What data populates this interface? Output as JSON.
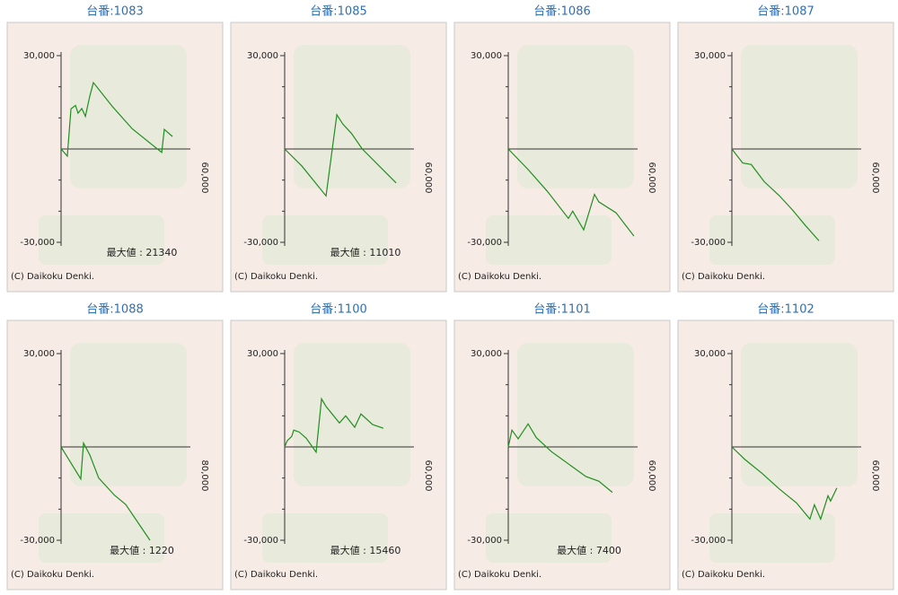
{
  "chart_data": [
    {
      "type": "line",
      "title": "台番:1083",
      "x": [
        0,
        2900,
        4600,
        6700,
        7900,
        9600,
        11300,
        13300,
        15000,
        24000,
        33000,
        46700,
        47900,
        51700
      ],
      "values": [
        0,
        -2300,
        12900,
        14000,
        11500,
        13000,
        10500,
        16900,
        21340,
        13500,
        6500,
        -1100,
        6300,
        4000
      ],
      "color": "#1f8f1f",
      "xlim": [
        0,
        60000
      ],
      "ylim": [
        -30000,
        30000
      ],
      "xticks": [
        {
          "value": 60000,
          "label": "60,000"
        }
      ],
      "yticks": [
        {
          "value": 30000,
          "label": "30,000"
        },
        {
          "value": -30000,
          "label": "-30,000"
        }
      ],
      "minor_yticks": [
        20000,
        10000,
        -10000,
        -20000
      ],
      "annotation": "最大値 : 21340",
      "copyright": "(C) Daikoku Denki."
    },
    {
      "type": "line",
      "title": "台番:1085",
      "x": [
        0,
        8000,
        19200,
        24200,
        27000,
        31000,
        36000,
        51700
      ],
      "values": [
        0,
        -5500,
        -15100,
        11010,
        8000,
        5000,
        0,
        -10900
      ],
      "color": "#1f8f1f",
      "xlim": [
        0,
        60000
      ],
      "ylim": [
        -30000,
        30000
      ],
      "xticks": [
        {
          "value": 60000,
          "label": "60,000"
        }
      ],
      "yticks": [
        {
          "value": 30000,
          "label": "30,000"
        },
        {
          "value": -30000,
          "label": "-30,000"
        }
      ],
      "minor_yticks": [
        20000,
        10000,
        -10000,
        -20000
      ],
      "annotation": "最大値 : 11010",
      "copyright": "(C) Daikoku Denki."
    },
    {
      "type": "line",
      "title": "台番:1086",
      "x": [
        0,
        9200,
        18000,
        27900,
        29900,
        35000,
        40000,
        42000,
        50000,
        58300
      ],
      "values": [
        0,
        -6600,
        -13500,
        -22300,
        -20000,
        -26000,
        -14600,
        -17000,
        -20500,
        -28000
      ],
      "color": "#1f8f1f",
      "xlim": [
        0,
        60000
      ],
      "ylim": [
        -30000,
        30000
      ],
      "xticks": [
        {
          "value": 60000,
          "label": "60,000"
        }
      ],
      "yticks": [
        {
          "value": 30000,
          "label": "30,000"
        },
        {
          "value": -30000,
          "label": "-30,000"
        }
      ],
      "minor_yticks": [
        20000,
        10000,
        -10000,
        -20000
      ],
      "copyright": "(C) Daikoku Denki."
    },
    {
      "type": "line",
      "title": "台番:1087",
      "x": [
        0,
        5000,
        9000,
        15000,
        22000,
        28000,
        34000,
        40400
      ],
      "values": [
        0,
        -4500,
        -5000,
        -10500,
        -15000,
        -19500,
        -24500,
        -29500
      ],
      "color": "#1f8f1f",
      "xlim": [
        0,
        60000
      ],
      "ylim": [
        -30000,
        30000
      ],
      "xticks": [
        {
          "value": 60000,
          "label": "60,000"
        }
      ],
      "yticks": [
        {
          "value": 30000,
          "label": "30,000"
        },
        {
          "value": -30000,
          "label": "-30,000"
        }
      ],
      "minor_yticks": [
        20000,
        10000,
        -10000,
        -20000
      ],
      "copyright": "(C) Daikoku Denki."
    },
    {
      "type": "line",
      "title": "台番:1088",
      "x": [
        0,
        12200,
        13900,
        17800,
        23300,
        33000,
        40000,
        55000
      ],
      "values": [
        0,
        -10300,
        1220,
        -2600,
        -10000,
        -15500,
        -18500,
        -30000
      ],
      "color": "#1f8f1f",
      "xlim": [
        0,
        80000
      ],
      "ylim": [
        -30000,
        30000
      ],
      "xticks": [
        {
          "value": 80000,
          "label": "80,000"
        }
      ],
      "yticks": [
        {
          "value": 30000,
          "label": "30,000"
        },
        {
          "value": -30000,
          "label": "-30,000"
        }
      ],
      "minor_yticks": [
        20000,
        10000,
        -10000,
        -20000
      ],
      "annotation": "最大値 : 1220",
      "copyright": "(C) Daikoku Denki."
    },
    {
      "type": "line",
      "title": "台番:1100",
      "x": [
        0,
        1200,
        3300,
        4200,
        6700,
        10000,
        14600,
        17100,
        19200,
        25400,
        28300,
        32500,
        35400,
        40800,
        45800
      ],
      "values": [
        0,
        2000,
        3400,
        5400,
        4800,
        2800,
        -1700,
        15460,
        13000,
        7700,
        10000,
        6300,
        10600,
        7200,
        6000
      ],
      "color": "#1f8f1f",
      "xlim": [
        0,
        60000
      ],
      "ylim": [
        -30000,
        30000
      ],
      "xticks": [
        {
          "value": 60000,
          "label": "60,000"
        }
      ],
      "yticks": [
        {
          "value": 30000,
          "label": "30,000"
        },
        {
          "value": -30000,
          "label": "-30,000"
        }
      ],
      "minor_yticks": [
        20000,
        10000,
        -10000,
        -20000
      ],
      "annotation": "最大値 : 15460",
      "copyright": "(C) Daikoku Denki."
    },
    {
      "type": "line",
      "title": "台番:1101",
      "x": [
        0,
        1700,
        4600,
        9200,
        13000,
        20000,
        28000,
        36000,
        42000,
        48300
      ],
      "values": [
        0,
        5400,
        2600,
        7400,
        3000,
        -1500,
        -5500,
        -9500,
        -11000,
        -14600
      ],
      "color": "#1f8f1f",
      "xlim": [
        0,
        60000
      ],
      "ylim": [
        -30000,
        30000
      ],
      "xticks": [
        {
          "value": 60000,
          "label": "60,000"
        }
      ],
      "yticks": [
        {
          "value": 30000,
          "label": "30,000"
        },
        {
          "value": -30000,
          "label": "-30,000"
        }
      ],
      "minor_yticks": [
        20000,
        10000,
        -10000,
        -20000
      ],
      "annotation": "最大値 : 7400",
      "copyright": "(C) Daikoku Denki."
    },
    {
      "type": "line",
      "title": "台番:1102",
      "x": [
        0,
        6000,
        14000,
        22000,
        30000,
        36200,
        38300,
        41200,
        44600,
        45800,
        48700
      ],
      "values": [
        0,
        -4000,
        -8500,
        -13500,
        -18000,
        -23200,
        -18600,
        -23200,
        -15700,
        -17400,
        -13200
      ],
      "color": "#1f8f1f",
      "xlim": [
        0,
        60000
      ],
      "ylim": [
        -30000,
        30000
      ],
      "xticks": [
        {
          "value": 60000,
          "label": "60,000"
        }
      ],
      "yticks": [
        {
          "value": 30000,
          "label": "30,000"
        },
        {
          "value": -30000,
          "label": "-30,000"
        }
      ],
      "minor_yticks": [
        20000,
        10000,
        -10000,
        -20000
      ],
      "copyright": "(C) Daikoku Denki."
    }
  ]
}
